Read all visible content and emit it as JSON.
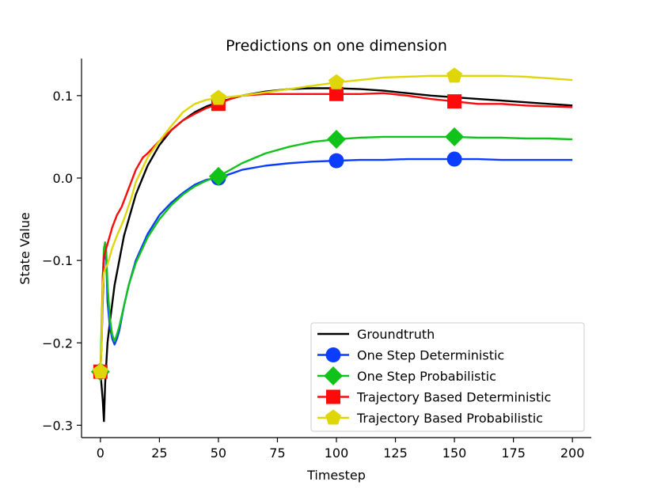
{
  "chart_data": {
    "type": "line",
    "title": "Predictions on one dimension",
    "xlabel": "Timestep",
    "ylabel": "State Value",
    "xlim": [
      -8,
      208
    ],
    "ylim": [
      -0.315,
      0.145
    ],
    "xticks": [
      0,
      25,
      50,
      75,
      100,
      125,
      150,
      175,
      200
    ],
    "xtick_labels": [
      "0",
      "25",
      "50",
      "75",
      "100",
      "125",
      "150",
      "175",
      "200"
    ],
    "yticks": [
      -0.3,
      -0.2,
      -0.1,
      0.0,
      0.1
    ],
    "ytick_labels": [
      "−0.3",
      "−0.2",
      "−0.1",
      "0.0",
      "0.1"
    ],
    "grid": false,
    "legend_position": "lower-right",
    "series": [
      {
        "name": "Groundtruth",
        "color": "#000000",
        "marker": "none",
        "x": [
          0,
          1,
          1.5,
          2,
          3,
          4,
          6,
          8,
          10,
          15,
          20,
          25,
          30,
          35,
          40,
          45,
          50,
          60,
          70,
          80,
          90,
          100,
          110,
          120,
          130,
          140,
          150,
          160,
          170,
          180,
          190,
          200
        ],
        "y": [
          -0.235,
          -0.27,
          -0.295,
          -0.25,
          -0.2,
          -0.175,
          -0.13,
          -0.1,
          -0.07,
          -0.02,
          0.015,
          0.04,
          0.058,
          0.07,
          0.08,
          0.087,
          0.092,
          0.1,
          0.105,
          0.108,
          0.109,
          0.109,
          0.108,
          0.106,
          0.103,
          0.1,
          0.098,
          0.096,
          0.094,
          0.092,
          0.09,
          0.088
        ]
      },
      {
        "name": "One Step Deterministic",
        "color": "#0a3dff",
        "marker": "circle",
        "marker_x": [
          0,
          50,
          100,
          150
        ],
        "x": [
          0,
          0.5,
          1,
          1.5,
          2,
          2.5,
          3,
          4,
          5,
          6,
          7,
          8,
          10,
          12,
          15,
          20,
          25,
          30,
          35,
          40,
          45,
          50,
          60,
          70,
          80,
          90,
          100,
          110,
          120,
          130,
          140,
          150,
          160,
          170,
          180,
          190,
          200
        ],
        "y": [
          -0.235,
          -0.2,
          -0.15,
          -0.1,
          -0.09,
          -0.1,
          -0.15,
          -0.18,
          -0.195,
          -0.202,
          -0.195,
          -0.185,
          -0.155,
          -0.13,
          -0.1,
          -0.068,
          -0.045,
          -0.03,
          -0.018,
          -0.008,
          -0.002,
          0.0,
          0.01,
          0.015,
          0.018,
          0.02,
          0.021,
          0.022,
          0.022,
          0.023,
          0.023,
          0.023,
          0.023,
          0.022,
          0.022,
          0.022,
          0.022
        ]
      },
      {
        "name": "One Step Probabilistic",
        "color": "#11c21b",
        "marker": "diamond",
        "marker_x": [
          0,
          50,
          100,
          150
        ],
        "x": [
          0,
          0.5,
          1,
          1.5,
          2,
          2.5,
          3,
          4,
          5,
          6,
          7,
          8,
          10,
          12,
          15,
          20,
          25,
          30,
          35,
          40,
          45,
          50,
          60,
          70,
          80,
          90,
          100,
          110,
          120,
          130,
          140,
          150,
          160,
          170,
          180,
          190,
          200
        ],
        "y": [
          -0.235,
          -0.18,
          -0.12,
          -0.085,
          -0.078,
          -0.09,
          -0.13,
          -0.17,
          -0.19,
          -0.198,
          -0.19,
          -0.18,
          -0.155,
          -0.13,
          -0.103,
          -0.072,
          -0.05,
          -0.033,
          -0.02,
          -0.01,
          -0.003,
          0.002,
          0.018,
          0.03,
          0.038,
          0.044,
          0.047,
          0.049,
          0.05,
          0.05,
          0.05,
          0.05,
          0.049,
          0.049,
          0.048,
          0.048,
          0.047
        ]
      },
      {
        "name": "Trajectory Based Deterministic",
        "color": "#ff0a0a",
        "marker": "square",
        "marker_x": [
          0,
          50,
          100,
          150
        ],
        "x": [
          0,
          0.5,
          1,
          1.5,
          2,
          3,
          4,
          5,
          7,
          9,
          11,
          13,
          15,
          18,
          20,
          25,
          30,
          35,
          40,
          45,
          50,
          55,
          60,
          70,
          80,
          90,
          100,
          110,
          120,
          130,
          140,
          150,
          160,
          170,
          180,
          190,
          200
        ],
        "y": [
          -0.235,
          -0.2,
          -0.12,
          -0.095,
          -0.09,
          -0.08,
          -0.07,
          -0.06,
          -0.045,
          -0.035,
          -0.02,
          -0.005,
          0.01,
          0.025,
          0.03,
          0.045,
          0.058,
          0.07,
          0.078,
          0.085,
          0.09,
          0.096,
          0.1,
          0.102,
          0.102,
          0.102,
          0.102,
          0.102,
          0.103,
          0.1,
          0.096,
          0.093,
          0.09,
          0.09,
          0.088,
          0.087,
          0.086
        ]
      },
      {
        "name": "Trajectory Based Probabilistic",
        "color": "#dfd60a",
        "marker": "pentagon",
        "marker_x": [
          0,
          50,
          100,
          150
        ],
        "x": [
          0,
          0.5,
          1,
          1.5,
          2,
          3,
          4,
          5,
          7,
          10,
          13,
          15,
          20,
          25,
          30,
          35,
          40,
          45,
          50,
          60,
          70,
          80,
          90,
          100,
          110,
          120,
          130,
          140,
          150,
          160,
          170,
          180,
          190,
          200
        ],
        "y": [
          -0.235,
          -0.2,
          -0.13,
          -0.115,
          -0.11,
          -0.105,
          -0.095,
          -0.085,
          -0.07,
          -0.05,
          -0.025,
          -0.005,
          0.025,
          0.045,
          0.063,
          0.08,
          0.09,
          0.095,
          0.097,
          0.1,
          0.104,
          0.108,
          0.112,
          0.116,
          0.119,
          0.122,
          0.123,
          0.124,
          0.124,
          0.124,
          0.124,
          0.123,
          0.121,
          0.119
        ]
      }
    ]
  }
}
